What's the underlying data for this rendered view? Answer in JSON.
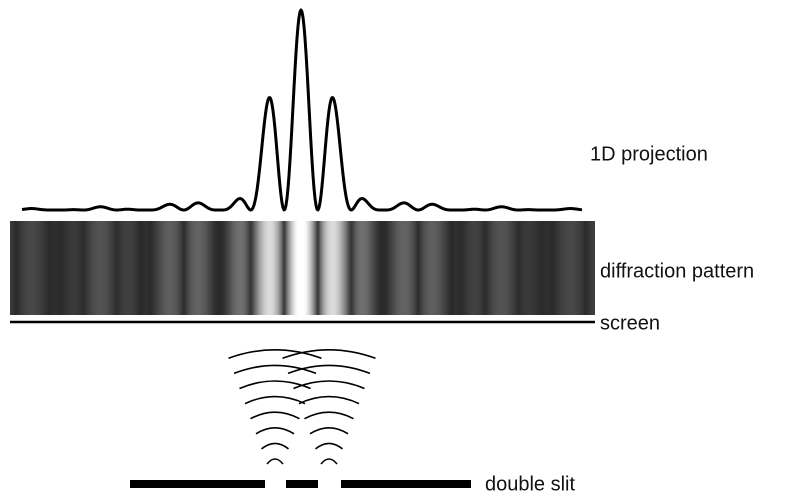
{
  "labels": {
    "projection": "1D projection",
    "pattern": "diffraction pattern",
    "screen": "screen",
    "slit": "double slit"
  }
}
